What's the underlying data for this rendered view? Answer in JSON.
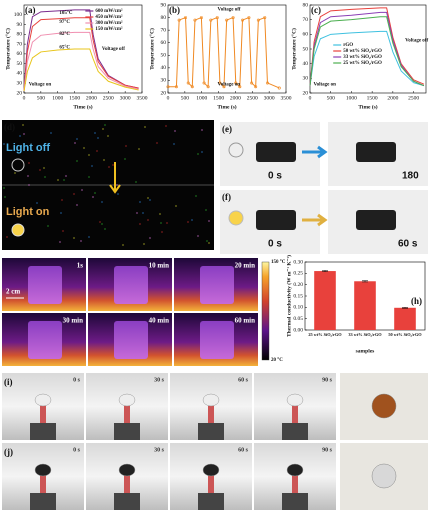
{
  "chart_data": [
    {
      "type": "line",
      "panel_label": "(a)",
      "xlabel": "Time (s)",
      "ylabel": "Temperature (°C)",
      "xlim": [
        0,
        3500
      ],
      "xticks": [
        0,
        500,
        1000,
        1500,
        2000,
        2500,
        3000,
        3500
      ],
      "ylim": [
        20,
        110
      ],
      "yticks": [
        20,
        30,
        40,
        50,
        60,
        70,
        80,
        90,
        100
      ],
      "legend": "upper center",
      "x": [
        0,
        100,
        250,
        500,
        1000,
        1500,
        1950,
        2050,
        2200,
        2500,
        3000,
        3400
      ],
      "series": [
        {
          "name": "600 mW/cm²",
          "color": "#7b2d8e",
          "values": [
            22,
            70,
            98,
            103,
            104,
            105,
            105,
            80,
            55,
            38,
            28,
            25
          ]
        },
        {
          "name": "450 mW/cm²",
          "color": "#e8413c",
          "values": [
            22,
            62,
            88,
            95,
            96,
            97,
            97,
            74,
            52,
            37,
            28,
            25
          ]
        },
        {
          "name": "300 mW/cm²",
          "color": "#f08fb0",
          "values": [
            22,
            52,
            72,
            79,
            81,
            82,
            82,
            65,
            47,
            35,
            27,
            24
          ]
        },
        {
          "name": "150 mW/cm²",
          "color": "#e8c51b",
          "values": [
            22,
            42,
            56,
            62,
            64,
            65,
            65,
            55,
            42,
            32,
            26,
            23
          ]
        }
      ],
      "annotations": [
        "105°C",
        "97°C",
        "82°C",
        "65°C",
        "Voltage on",
        "Voltage off"
      ]
    },
    {
      "type": "line",
      "panel_label": "(b)",
      "xlabel": "Time (s)",
      "ylabel": "Temperature (°C)",
      "xlim": [
        0,
        3500
      ],
      "xticks": [
        0,
        500,
        1000,
        1500,
        2000,
        2500,
        3000,
        3500
      ],
      "ylim": [
        20,
        90
      ],
      "yticks": [
        20,
        30,
        40,
        50,
        60,
        70,
        80,
        90
      ],
      "markers": true,
      "x": [
        0,
        250,
        330,
        520,
        600,
        720,
        800,
        990,
        1070,
        1190,
        1270,
        1460,
        1540,
        1660,
        1740,
        1930,
        2010,
        2130,
        2210,
        2400,
        2480,
        2600,
        2680,
        2870,
        2950,
        3300
      ],
      "series": [
        {
          "color": "#f08a24",
          "values": [
            25,
            25,
            78,
            80,
            28,
            25,
            78,
            80,
            28,
            25,
            78,
            80,
            28,
            25,
            78,
            80,
            28,
            25,
            78,
            80,
            28,
            25,
            78,
            80,
            28,
            24
          ]
        }
      ],
      "annotations": [
        "Voltage off",
        "Voltage on"
      ]
    },
    {
      "type": "line",
      "panel_label": "(c)",
      "xlabel": "Time (s)",
      "ylabel": "Temperature (°C)",
      "xlim": [
        0,
        2800
      ],
      "xticks": [
        0,
        500,
        1000,
        1500,
        2000,
        2500
      ],
      "ylim": [
        20,
        80
      ],
      "yticks": [
        20,
        30,
        40,
        50,
        60,
        70,
        80
      ],
      "legend": "center left",
      "x": [
        0,
        100,
        250,
        500,
        1000,
        1700,
        1850,
        2000,
        2200,
        2500,
        2750
      ],
      "series": [
        {
          "name": "rGO",
          "color": "#3fc1e0",
          "values": [
            25,
            45,
            57,
            60,
            61,
            62,
            62,
            48,
            35,
            27,
            25
          ]
        },
        {
          "name": "50 wt% SiO₂/rGO",
          "color": "#e8413c",
          "values": [
            25,
            55,
            72,
            76,
            77,
            78,
            78,
            58,
            40,
            29,
            26
          ]
        },
        {
          "name": "33 wt% SiO₂/rGO",
          "color": "#8a3fb5",
          "values": [
            25,
            52,
            68,
            72,
            73,
            75,
            75,
            56,
            39,
            28,
            25
          ]
        },
        {
          "name": "25 wt% SiO₂/rGO",
          "color": "#4caf50",
          "values": [
            25,
            50,
            65,
            69,
            70,
            72,
            72,
            54,
            38,
            28,
            25
          ]
        }
      ],
      "annotations": [
        "Voltage on",
        "Voltage off"
      ]
    },
    {
      "type": "bar",
      "panel_label": "(h)",
      "xlabel": "samples",
      "ylabel": "Thermal conductivity (W m⁻¹ K⁻¹)",
      "categories": [
        "25 wt% SiO₂/rGO",
        "33 wt% SiO₂/rGO",
        "50 wt% SiO₂/rGO"
      ],
      "values": [
        0.26,
        0.215,
        0.098
      ],
      "errors": [
        0.003,
        0.003,
        0.002
      ],
      "color": "#e8413c",
      "ylim": [
        0,
        0.3
      ],
      "yticks": [
        {
          "value": 0,
          "label": "0.00"
        },
        {
          "value": 0.05,
          "label": "0.05"
        },
        {
          "value": 0.1,
          "label": "0.10"
        },
        {
          "value": 0.15,
          "label": "0.15"
        },
        {
          "value": 0.2,
          "label": "0.20"
        },
        {
          "value": 0.25,
          "label": "0.25"
        },
        {
          "value": 0.3,
          "label": "0.30"
        }
      ]
    }
  ],
  "photo_panels": [
    {
      "label": "(d)",
      "captions": [
        "Light off",
        "Light on"
      ]
    },
    {
      "label": "(e)",
      "captions": [
        "0 s",
        "180"
      ]
    },
    {
      "label": "(f)",
      "captions": [
        "0 s",
        "60 s"
      ]
    },
    {
      "label": "(g)",
      "captions": [
        "1s",
        "10 min",
        "20 min",
        "30 min",
        "40 min",
        "60 min",
        "2 cm"
      ],
      "colorbar": [
        "150 °C",
        "20 °C"
      ]
    },
    {
      "label": "(i)",
      "captions": [
        "0 s",
        "30 s",
        "60 s",
        "90 s"
      ]
    },
    {
      "label": "(j)",
      "captions": [
        "0 s",
        "30 s",
        "60 s",
        "90 s"
      ]
    }
  ]
}
